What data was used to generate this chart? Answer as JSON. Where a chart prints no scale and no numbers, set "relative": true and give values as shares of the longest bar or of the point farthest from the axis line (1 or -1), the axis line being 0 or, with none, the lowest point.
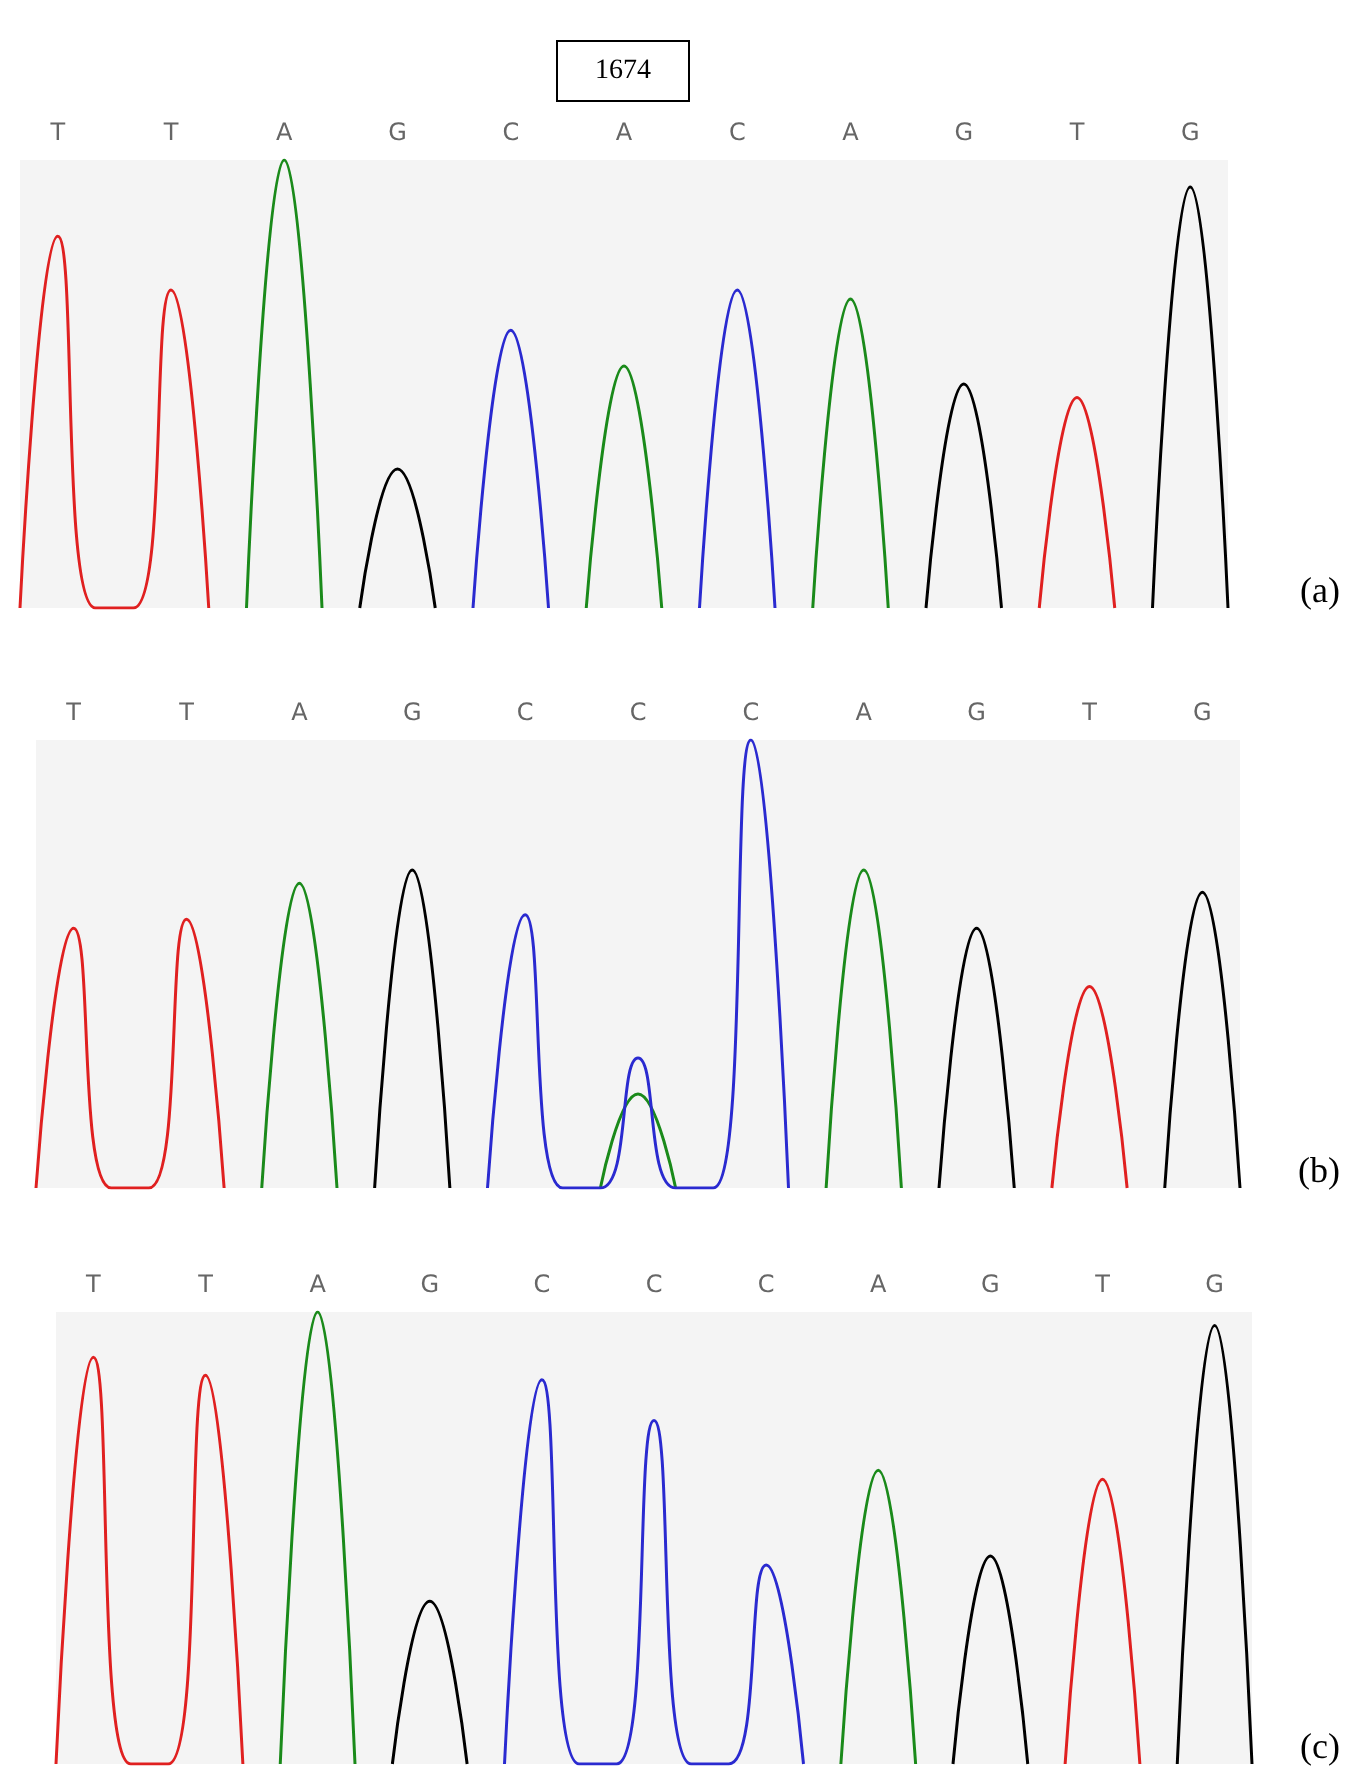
{
  "chart_data": [
    {
      "type": "line",
      "annotations": [
        "1674",
        "(a)"
      ],
      "relative": true,
      "tick_labels": "x",
      "grid": false,
      "marker": "none",
      "categories": [
        null,
        "T",
        null,
        null,
        "T",
        null,
        null,
        "A",
        null,
        null,
        "G",
        null,
        null,
        "C",
        null,
        null,
        "A",
        null,
        null,
        "C",
        null,
        null,
        "A",
        null,
        null,
        "G",
        null,
        null,
        "T",
        null,
        null,
        "G",
        null
      ],
      "series": [
        {
          "color": "#e02020",
          "values": [
            0,
            0.83,
            0,
            0,
            0.71,
            0,
            null,
            null,
            null,
            null,
            null,
            null,
            null,
            null,
            null,
            null,
            null,
            null,
            null,
            null,
            null,
            null,
            null,
            null,
            null,
            null,
            null,
            0,
            0.47,
            0,
            null,
            null,
            null
          ]
        },
        {
          "color": "#1a8a1a",
          "values": [
            null,
            null,
            null,
            null,
            null,
            null,
            0,
            1,
            0,
            null,
            null,
            null,
            null,
            null,
            null,
            0,
            0.54,
            0,
            null,
            null,
            null,
            0,
            0.69,
            0,
            null,
            null,
            null,
            null,
            null,
            null,
            null,
            null,
            null
          ]
        },
        {
          "color": "#2a2ad0",
          "values": [
            null,
            null,
            null,
            null,
            null,
            null,
            null,
            null,
            null,
            null,
            null,
            null,
            0,
            0.62,
            0,
            null,
            null,
            null,
            0,
            0.71,
            0,
            null,
            null,
            null,
            null,
            null,
            null,
            null,
            null,
            null,
            null,
            null,
            null
          ]
        },
        {
          "color": "#000000",
          "values": [
            null,
            null,
            null,
            null,
            null,
            null,
            null,
            null,
            null,
            0,
            0.31,
            0,
            null,
            null,
            null,
            null,
            null,
            null,
            null,
            null,
            null,
            null,
            null,
            null,
            0,
            0.5,
            0,
            null,
            null,
            null,
            0,
            0.94,
            0
          ]
        }
      ]
    },
    {
      "type": "line",
      "annotations": [
        "(b)"
      ],
      "relative": true,
      "tick_labels": "x",
      "grid": false,
      "marker": "none",
      "categories": [
        null,
        "T",
        null,
        null,
        "T",
        null,
        null,
        "A",
        null,
        null,
        "G",
        null,
        null,
        "C",
        null,
        null,
        "C",
        null,
        null,
        "C",
        null,
        null,
        "A",
        null,
        null,
        "G",
        null,
        null,
        "T",
        null,
        null,
        "G",
        null
      ],
      "series": [
        {
          "color": "#e02020",
          "values": [
            0,
            0.58,
            0,
            0,
            0.6,
            0,
            null,
            null,
            null,
            null,
            null,
            null,
            null,
            null,
            null,
            null,
            null,
            null,
            null,
            null,
            null,
            null,
            null,
            null,
            null,
            null,
            null,
            0,
            0.45,
            0,
            null,
            null,
            null
          ]
        },
        {
          "color": "#1a8a1a",
          "values": [
            null,
            null,
            null,
            null,
            null,
            null,
            0,
            0.68,
            0,
            null,
            null,
            null,
            null,
            null,
            null,
            0,
            0.21,
            0,
            null,
            null,
            null,
            0,
            0.71,
            0,
            null,
            null,
            null,
            null,
            null,
            null,
            null,
            null,
            null
          ]
        },
        {
          "color": "#2a2ad0",
          "values": [
            null,
            null,
            null,
            null,
            null,
            null,
            null,
            null,
            null,
            null,
            null,
            null,
            0,
            0.61,
            0,
            0,
            0.29,
            0,
            0,
            1,
            0,
            null,
            null,
            null,
            null,
            null,
            null,
            null,
            null,
            null,
            null,
            null,
            null
          ]
        },
        {
          "color": "#000000",
          "values": [
            null,
            null,
            null,
            null,
            null,
            null,
            null,
            null,
            null,
            0,
            0.71,
            0,
            null,
            null,
            null,
            null,
            null,
            null,
            null,
            null,
            null,
            null,
            null,
            null,
            0,
            0.58,
            0,
            null,
            null,
            null,
            0,
            0.66,
            0
          ]
        }
      ]
    },
    {
      "type": "line",
      "annotations": [
        "(c)"
      ],
      "relative": true,
      "tick_labels": "x",
      "grid": false,
      "marker": "none",
      "categories": [
        null,
        "T",
        null,
        null,
        "T",
        null,
        null,
        "A",
        null,
        null,
        "G",
        null,
        null,
        "C",
        null,
        null,
        "C",
        null,
        null,
        "C",
        null,
        null,
        "A",
        null,
        null,
        "G",
        null,
        null,
        "T",
        null,
        null,
        "G",
        null
      ],
      "series": [
        {
          "color": "#e02020",
          "values": [
            0,
            0.9,
            0,
            0,
            0.86,
            0,
            null,
            null,
            null,
            null,
            null,
            null,
            null,
            null,
            null,
            null,
            null,
            null,
            null,
            null,
            null,
            null,
            null,
            null,
            null,
            null,
            null,
            0,
            0.63,
            0,
            null,
            null,
            null
          ]
        },
        {
          "color": "#1a8a1a",
          "values": [
            null,
            null,
            null,
            null,
            null,
            null,
            0,
            1,
            0,
            null,
            null,
            null,
            null,
            null,
            null,
            null,
            null,
            null,
            null,
            null,
            null,
            0,
            0.65,
            0,
            null,
            null,
            null,
            null,
            null,
            null,
            null,
            null,
            null
          ]
        },
        {
          "color": "#2a2ad0",
          "values": [
            null,
            null,
            null,
            null,
            null,
            null,
            null,
            null,
            null,
            null,
            null,
            null,
            0,
            0.85,
            0,
            0,
            0.76,
            0,
            0,
            0.44,
            0,
            null,
            null,
            null,
            null,
            null,
            null,
            null,
            null,
            null,
            null,
            null,
            null
          ]
        },
        {
          "color": "#000000",
          "values": [
            null,
            null,
            null,
            null,
            null,
            null,
            null,
            null,
            null,
            0,
            0.36,
            0,
            null,
            null,
            null,
            null,
            null,
            null,
            null,
            null,
            null,
            null,
            null,
            null,
            0,
            0.46,
            0,
            null,
            null,
            null,
            0,
            0.97,
            0
          ]
        }
      ]
    }
  ]
}
